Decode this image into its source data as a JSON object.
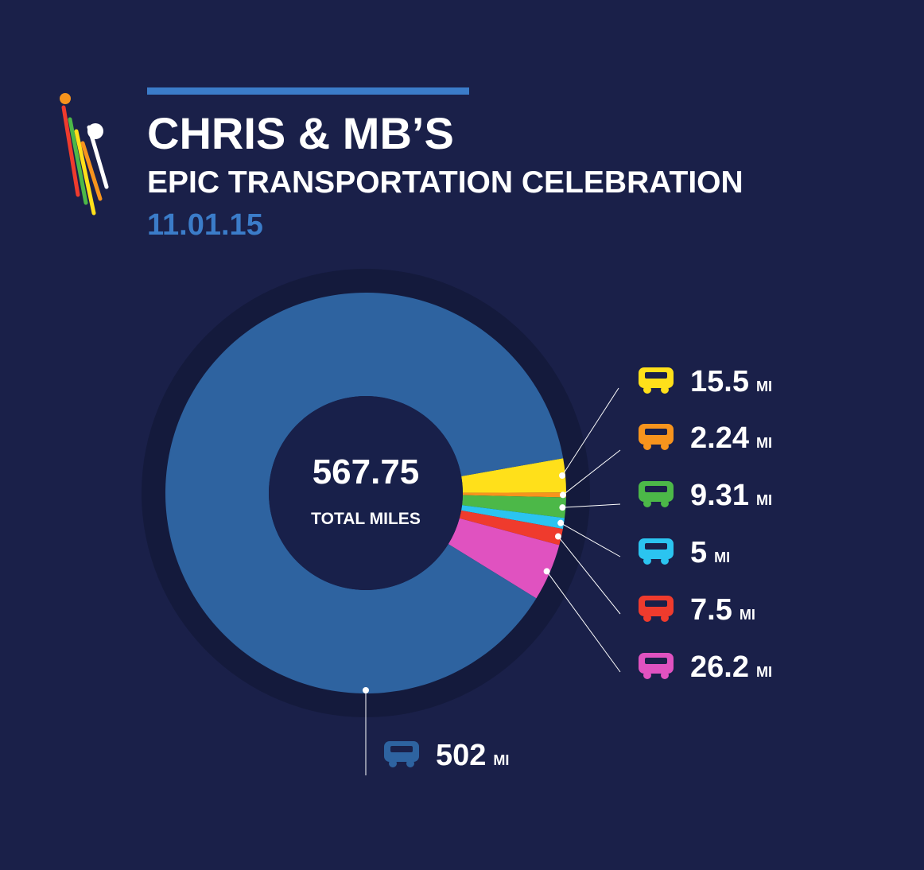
{
  "chart_data": {
    "type": "pie",
    "title": "CHRIS & MB’S",
    "subtitle": "EPIC TRANSPORTATION CELEBRATION",
    "date": "11.01.15",
    "total": 567.75,
    "total_label": "TOTAL MILES",
    "unit": "MI",
    "values": [
      15.5,
      2.24,
      9.31,
      5,
      7.5,
      26.2,
      502
    ],
    "colors": [
      "#ffe01a",
      "#f7941d",
      "#4cb848",
      "#2bc4f0",
      "#ef3b2d",
      "#e052c0",
      "#2e63a0"
    ]
  }
}
